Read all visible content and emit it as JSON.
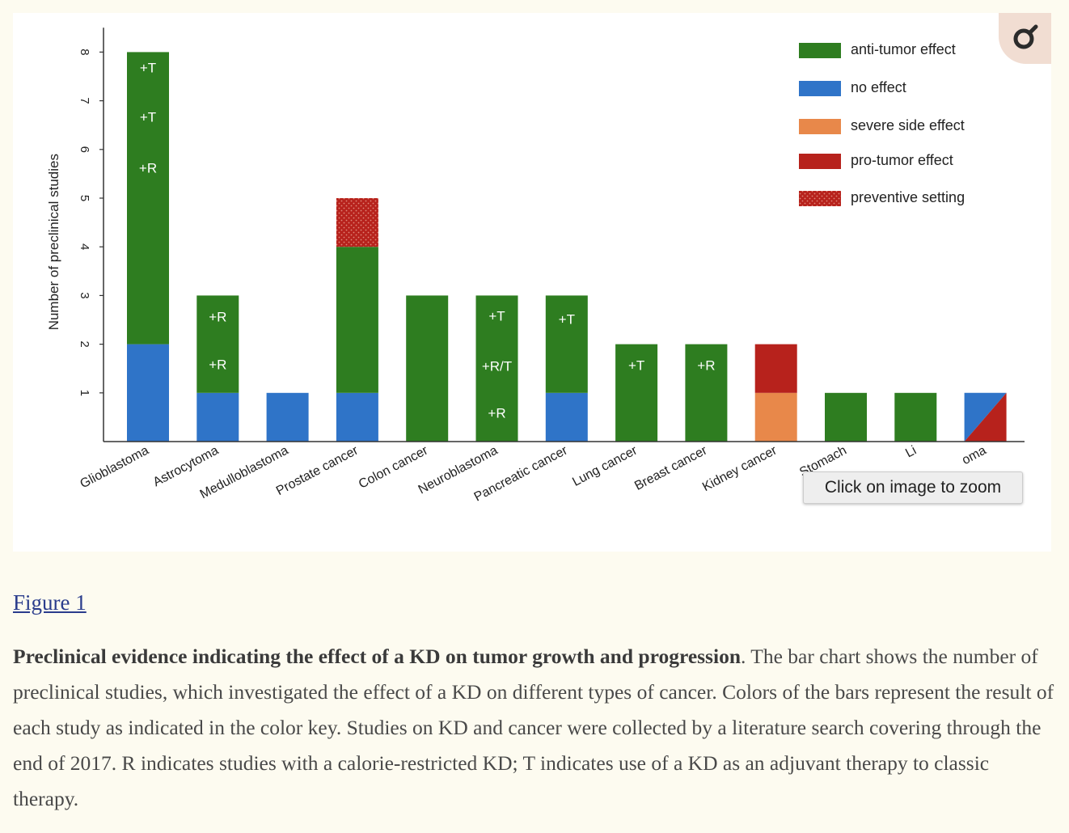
{
  "chart_data": {
    "type": "bar",
    "stacked": true,
    "ylabel": "Number of preclinical studies",
    "yticks": [
      1,
      2,
      3,
      4,
      5,
      6,
      7,
      8
    ],
    "ylim": [
      0,
      8.5
    ],
    "categories": [
      "Glioblastoma",
      "Astrocytoma",
      "Medulloblastoma",
      "Prostate cancer",
      "Colon cancer",
      "Neuroblastoma",
      "Pancreatic cancer",
      "Lung cancer",
      "Breast cancer",
      "Kidney cancer",
      "Stomach cancer",
      "Liver cancer",
      "Hepatoma"
    ],
    "category_labels_visible": [
      "Glioblastoma",
      "Astrocytoma",
      "Medulloblastoma",
      "Prostate cancer",
      "Colon cancer",
      "Neuroblastoma",
      "Pancreatic cancer",
      "Lung cancer",
      "Breast cancer",
      "Kidney cancer",
      "Stomach",
      "Li",
      "oma"
    ],
    "stacks": [
      [
        {
          "effect": "no effect",
          "value": 2
        },
        {
          "effect": "anti-tumor effect",
          "value": 6
        }
      ],
      [
        {
          "effect": "no effect",
          "value": 1
        },
        {
          "effect": "anti-tumor effect",
          "value": 2
        }
      ],
      [
        {
          "effect": "no effect",
          "value": 1
        }
      ],
      [
        {
          "effect": "no effect",
          "value": 1
        },
        {
          "effect": "anti-tumor effect",
          "value": 3
        },
        {
          "effect": "preventive setting",
          "value": 1
        }
      ],
      [
        {
          "effect": "anti-tumor effect",
          "value": 3
        }
      ],
      [
        {
          "effect": "anti-tumor effect",
          "value": 3
        }
      ],
      [
        {
          "effect": "no effect",
          "value": 1
        },
        {
          "effect": "anti-tumor effect",
          "value": 2
        }
      ],
      [
        {
          "effect": "anti-tumor effect",
          "value": 2
        }
      ],
      [
        {
          "effect": "anti-tumor effect",
          "value": 2
        }
      ],
      [
        {
          "effect": "severe side effect",
          "value": 1
        },
        {
          "effect": "pro-tumor effect",
          "value": 1
        }
      ],
      [
        {
          "effect": "anti-tumor effect",
          "value": 1
        }
      ],
      [
        {
          "effect": "anti-tumor effect",
          "value": 1
        }
      ],
      [
        {
          "effect": "no effect / pro-tumor effect (split)",
          "value": 1
        }
      ]
    ],
    "annotations": [
      {
        "category": "Glioblastoma",
        "labels": [
          "+R",
          "+T",
          "+T"
        ]
      },
      {
        "category": "Astrocytoma",
        "labels": [
          "+R",
          "+R"
        ]
      },
      {
        "category": "Neuroblastoma",
        "labels": [
          "+R",
          "+R/T",
          "+T"
        ]
      },
      {
        "category": "Pancreatic cancer",
        "labels": [
          "+T"
        ]
      },
      {
        "category": "Lung cancer",
        "labels": [
          "+T"
        ]
      },
      {
        "category": "Breast cancer",
        "labels": [
          "+R"
        ]
      }
    ],
    "legend": {
      "position": "top-right",
      "items": [
        {
          "label": "anti-tumor effect",
          "color": "#2e7d20",
          "pattern": false
        },
        {
          "label": "no effect",
          "color": "#2f74c8",
          "pattern": false
        },
        {
          "label": "severe side effect",
          "color": "#e8884a",
          "pattern": false
        },
        {
          "label": "pro-tumor effect",
          "color": "#b7221c",
          "pattern": false
        },
        {
          "label": "preventive setting",
          "color": "#b7221c",
          "pattern": true
        }
      ]
    },
    "colors": {
      "anti-tumor effect": "#2e7d20",
      "no effect": "#2f74c8",
      "severe side effect": "#e8884a",
      "pro-tumor effect": "#b7221c",
      "preventive setting": "#b7221c"
    }
  },
  "overlay": {
    "zoom_tooltip": "Click on image to zoom",
    "zoom_icon": "magnifier-icon"
  },
  "figure": {
    "link_text": "Figure 1",
    "caption_title": "Preclinical evidence indicating the effect of a KD on tumor growth and progression",
    "caption_body": ". The bar chart shows the number of preclinical studies, which investigated the effect of a KD on different types of cancer. Colors of the bars represent the result of each study as indicated in the color key. Studies on KD and cancer were collected by a literature search covering through the end of 2017. R indicates studies with a calorie-restricted KD; T indicates use of a KD as an adjuvant therapy to classic therapy."
  }
}
